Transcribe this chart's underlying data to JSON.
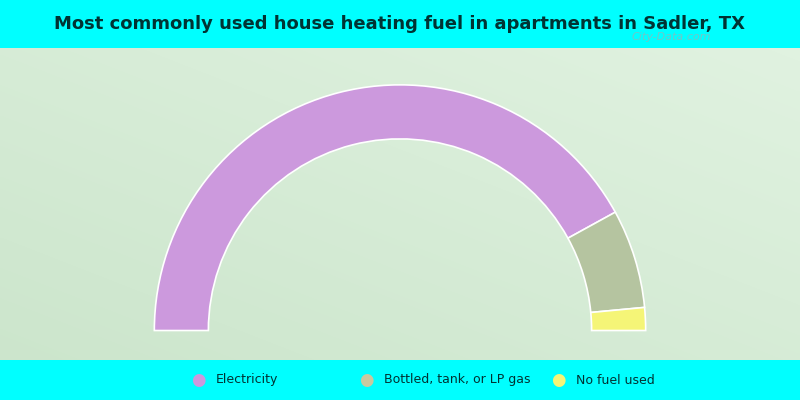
{
  "title": "Most commonly used house heating fuel in apartments in Sadler, TX",
  "title_fontsize": 13,
  "title_color": "#003333",
  "background_color": "#00FFFF",
  "slices": [
    {
      "label": "Electricity",
      "value": 84,
      "color": "#cc99dd"
    },
    {
      "label": "Bottled, tank, or LP gas",
      "value": 13,
      "color": "#b5c4a0"
    },
    {
      "label": "No fuel used",
      "value": 3,
      "color": "#f5f577"
    }
  ],
  "legend_colors": [
    "#cc99dd",
    "#c8c9a0",
    "#f5f577"
  ],
  "legend_labels": [
    "Electricity",
    "Bottled, tank, or LP gas",
    "No fuel used"
  ],
  "figsize": [
    8.0,
    4.0
  ],
  "dpi": 100,
  "watermark": "City-Data.com",
  "gradient_colors": [
    "#cce8cc",
    "#e8f5e0",
    "#ddf0dd",
    "#c0ddc8"
  ]
}
